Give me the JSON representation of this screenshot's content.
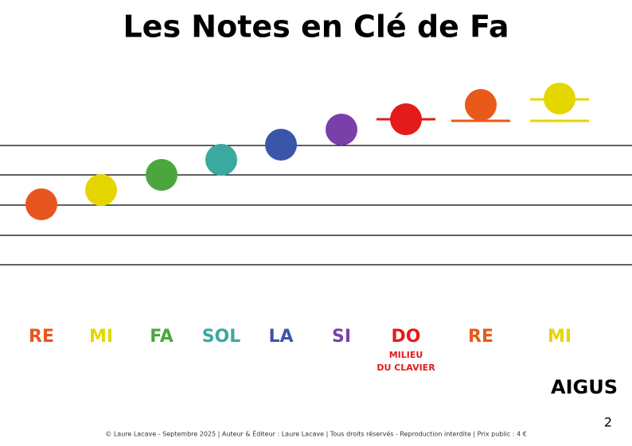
{
  "header": {
    "title": "Les Notes en Clé de Fa"
  },
  "notes": [
    {
      "label": "RE",
      "color": "#e8561f"
    },
    {
      "label": "MI",
      "color": "#e6d600"
    },
    {
      "label": "FA",
      "color": "#4ba63d"
    },
    {
      "label": "SOL",
      "color": "#3aa9a0"
    },
    {
      "label": "LA",
      "color": "#3a56a8"
    },
    {
      "label": "SI",
      "color": "#7a3fa8"
    },
    {
      "label": "DO",
      "color": "#e31b1b"
    },
    {
      "label": "RE",
      "color": "#e85a1a"
    },
    {
      "label": "MI",
      "color": "#e5d500"
    }
  ],
  "annotation": {
    "lines": [
      "MILIEU",
      "DU CLAVIER"
    ]
  },
  "register": "AIGUS",
  "footer": "© Laure Lacave - Septembre 2025 | Auteur & Éditeur : Laure Lacave | Tous droits réservés - Reproduction interdite | Prix public : 4 €",
  "page_number": "2"
}
